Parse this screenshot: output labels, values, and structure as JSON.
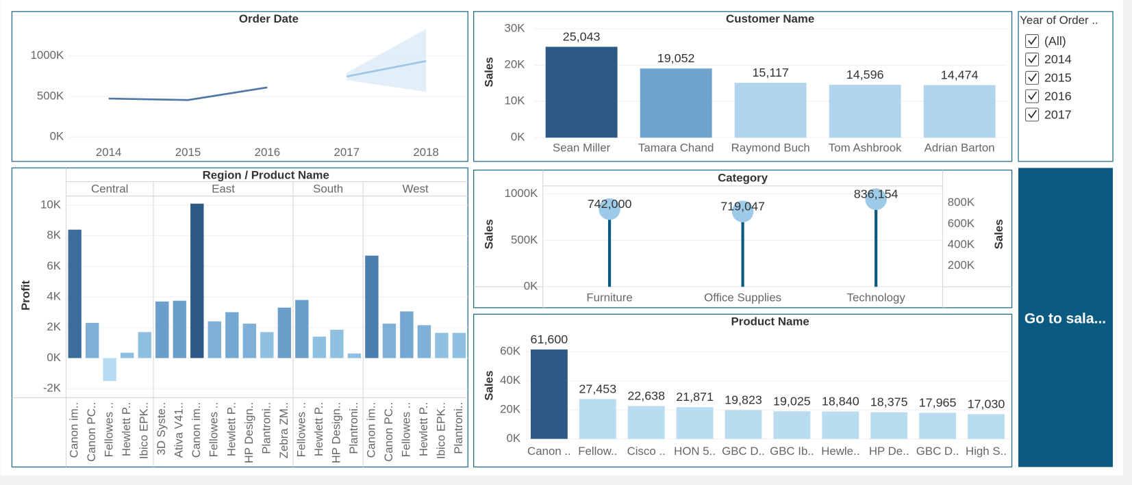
{
  "chart_data": [
    {
      "type": "line",
      "title": "Order Date",
      "categories": [
        "2014",
        "2015",
        "2016",
        "2017",
        "2018"
      ],
      "series": [
        {
          "color": "#4e79a7",
          "values": [
            473000,
            455000,
            610000,
            null,
            null
          ]
        },
        {
          "color": "#9dc6e8",
          "values": [
            null,
            null,
            null,
            745000,
            935000
          ]
        }
      ],
      "band": {
        "color": "#d8e9f7",
        "lower": [
          null,
          null,
          null,
          700000,
          555000
        ],
        "upper": [
          null,
          null,
          null,
          790000,
          1330000
        ]
      },
      "ylim": [
        0,
        1350000
      ],
      "yticks": [
        {
          "value": 0,
          "label": "0K"
        },
        {
          "value": 500000,
          "label": "500K"
        },
        {
          "value": 1000000,
          "label": "1000K"
        }
      ],
      "grid": true
    },
    {
      "type": "bar",
      "title": "Customer Name",
      "y_label": "Sales",
      "categories": [
        "Sean Miller",
        "Tamara Chand",
        "Raymond Buch",
        "Tom Ashbrook",
        "Adrian Barton"
      ],
      "values": [
        25043,
        19052,
        15117,
        14596,
        14474
      ],
      "value_labels": [
        "25,043",
        "19,052",
        "15,117",
        "14,596",
        "14,474"
      ],
      "colors": [
        "#2c5985",
        "#6fa3cb",
        "#b1d5ec",
        "#b1d5ec",
        "#b1d5ec"
      ],
      "ylim": [
        0,
        30000
      ],
      "yticks": [
        {
          "value": 0,
          "label": "0K"
        },
        {
          "value": 10000,
          "label": "10K"
        },
        {
          "value": 20000,
          "label": "20K"
        },
        {
          "value": 30000,
          "label": "30K"
        }
      ],
      "grid": true
    },
    {
      "type": "faceted_bar",
      "title": "Region  /  Product Name",
      "y_label": "Profit",
      "groups": [
        {
          "name": "Central",
          "categories": [
            "Canon im..",
            "Canon PC..",
            "Fellowes ..",
            "Hewlett P..",
            "Ibico EPK.."
          ],
          "values": [
            8400,
            2300,
            -1500,
            350,
            1700
          ],
          "colors": [
            "#3c6d9c",
            "#7fb1d8",
            "#b7dbf0",
            "#8fc0e1",
            "#8fc0e1"
          ]
        },
        {
          "name": "East",
          "categories": [
            "3D Syste..",
            "Ativa V41..",
            "Canon im..",
            "Fellowes ..",
            "Hewlett P..",
            "HP Design..",
            "Plantroni..",
            "Zebra ZM.."
          ],
          "values": [
            3700,
            3750,
            10100,
            2400,
            3000,
            2250,
            1700,
            3300
          ],
          "colors": [
            "#6c9ecb",
            "#6c9ecb",
            "#2c5985",
            "#7fb1d8",
            "#74a7d1",
            "#7fb1d8",
            "#8fc0e1",
            "#6c9ecb"
          ]
        },
        {
          "name": "South",
          "categories": [
            "Fellowes ..",
            "Hewlett P..",
            "HP Design..",
            "Plantroni.."
          ],
          "values": [
            3800,
            1400,
            1850,
            300
          ],
          "colors": [
            "#6c9ecb",
            "#8fc0e1",
            "#8fc0e1",
            "#8fc0e1"
          ]
        },
        {
          "name": "West",
          "categories": [
            "Canon im..",
            "Canon PC..",
            "Fellowes ..",
            "Hewlett P..",
            "Ibico EPK..",
            "Plantroni.."
          ],
          "values": [
            6700,
            2250,
            3050,
            2150,
            1650,
            1650
          ],
          "colors": [
            "#4a7fb0",
            "#7fb1d8",
            "#74a7d1",
            "#7fb1d8",
            "#8fc0e1",
            "#8fc0e1"
          ]
        }
      ],
      "ylim": [
        -2600,
        10600
      ],
      "yticks": [
        {
          "value": -2000,
          "label": "-2K"
        },
        {
          "value": 0,
          "label": "0K"
        },
        {
          "value": 2000,
          "label": "2K"
        },
        {
          "value": 4000,
          "label": "4K"
        },
        {
          "value": 6000,
          "label": "6K"
        },
        {
          "value": 8000,
          "label": "8K"
        },
        {
          "value": 10000,
          "label": "10K"
        }
      ],
      "grid": true
    },
    {
      "type": "lollipop",
      "title": "Category",
      "y_label": "Sales",
      "y2_label": "Sales",
      "categories": [
        "Furniture",
        "Office Supplies",
        "Technology"
      ],
      "series": [
        {
          "color": "#9ecae9",
          "stem_color": "#0b5a80",
          "axis": "y2",
          "values": [
            742000,
            719047,
            836154
          ],
          "value_labels": [
            "742,000",
            "719,047",
            "836,154"
          ]
        }
      ],
      "ylim": [
        0,
        1085000
      ],
      "yticks": [
        {
          "value": 0,
          "label": "0K"
        },
        {
          "value": 500000,
          "label": "500K"
        },
        {
          "value": 1000000,
          "label": "1000K"
        }
      ],
      "y2lim": [
        0,
        963000
      ],
      "y2ticks": [
        {
          "value": 200000,
          "label": "200K"
        },
        {
          "value": 400000,
          "label": "400K"
        },
        {
          "value": 600000,
          "label": "600K"
        },
        {
          "value": 800000,
          "label": "800K"
        }
      ],
      "grid": true
    },
    {
      "type": "bar",
      "title": "Product Name",
      "y_label": "Sales",
      "categories": [
        "Canon ..",
        "Fellow..",
        "Cisco ..",
        "HON 5..",
        "GBC D..",
        "GBC Ib..",
        "Hewle..",
        "HP De..",
        "GBC D..",
        "High S.."
      ],
      "values": [
        61600,
        27453,
        22638,
        21871,
        19823,
        19025,
        18840,
        18375,
        17965,
        17030
      ],
      "value_labels": [
        "61,600",
        "27,453",
        "22,638",
        "21,871",
        "19,823",
        "19,025",
        "18,840",
        "18,375",
        "17,965",
        "17,030"
      ],
      "colors": [
        "#2c5985",
        "#b9dcf0",
        "#b9dcf0",
        "#b9dcf0",
        "#b9dcf0",
        "#b9dcf0",
        "#b9dcf0",
        "#b9dcf0",
        "#b9dcf0",
        "#b9dcf0"
      ],
      "ylim": [
        0,
        73000
      ],
      "yticks": [
        {
          "value": 0,
          "label": "0K"
        },
        {
          "value": 20000,
          "label": "20K"
        },
        {
          "value": 40000,
          "label": "40K"
        },
        {
          "value": 60000,
          "label": "60K"
        }
      ],
      "grid": true
    }
  ],
  "filter": {
    "title": "Year of Order ..",
    "options": [
      "(All)",
      "2014",
      "2015",
      "2016",
      "2017"
    ]
  },
  "button": {
    "label": "Go to sala..."
  }
}
